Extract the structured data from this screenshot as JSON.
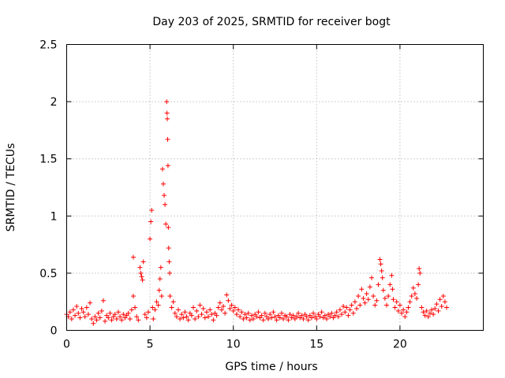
{
  "chart_data": {
    "type": "scatter",
    "title": "Day 203 of 2025, SRMTID for receiver bogt",
    "xlabel": "GPS time / hours",
    "ylabel": "SRMTID / TECUs",
    "xlim": [
      0,
      25
    ],
    "ylim": [
      0,
      2.5
    ],
    "xticks": [
      0,
      5,
      10,
      15,
      20
    ],
    "xtick_labels": [
      "0",
      "5",
      "10",
      "15",
      "20"
    ],
    "yticks": [
      0,
      0.5,
      1,
      1.5,
      2,
      2.5
    ],
    "ytick_labels": [
      "0",
      "0.5",
      "1",
      "1.5",
      "2",
      "2.5"
    ],
    "grid": true,
    "marker": "+",
    "color": "#ff0000",
    "series": [
      {
        "name": "SRMTID",
        "points": [
          [
            0.0,
            0.14
          ],
          [
            0.1,
            0.12
          ],
          [
            0.2,
            0.16
          ],
          [
            0.3,
            0.1
          ],
          [
            0.4,
            0.18
          ],
          [
            0.5,
            0.13
          ],
          [
            0.6,
            0.21
          ],
          [
            0.7,
            0.15
          ],
          [
            0.8,
            0.11
          ],
          [
            0.9,
            0.19
          ],
          [
            1.0,
            0.16
          ],
          [
            1.1,
            0.12
          ],
          [
            1.2,
            0.2
          ],
          [
            1.3,
            0.14
          ],
          [
            1.4,
            0.24
          ],
          [
            1.5,
            0.1
          ],
          [
            1.6,
            0.06
          ],
          [
            1.7,
            0.12
          ],
          [
            1.8,
            0.09
          ],
          [
            1.9,
            0.15
          ],
          [
            2.0,
            0.11
          ],
          [
            2.1,
            0.17
          ],
          [
            2.2,
            0.26
          ],
          [
            2.3,
            0.08
          ],
          [
            2.4,
            0.13
          ],
          [
            2.5,
            0.11
          ],
          [
            2.6,
            0.15
          ],
          [
            2.7,
            0.09
          ],
          [
            2.8,
            0.12
          ],
          [
            2.9,
            0.14
          ],
          [
            3.0,
            0.1
          ],
          [
            3.1,
            0.16
          ],
          [
            3.2,
            0.12
          ],
          [
            3.3,
            0.09
          ],
          [
            3.4,
            0.14
          ],
          [
            3.5,
            0.11
          ],
          [
            3.6,
            0.13
          ],
          [
            3.7,
            0.15
          ],
          [
            3.8,
            0.1
          ],
          [
            3.9,
            0.18
          ],
          [
            4.0,
            0.64
          ],
          [
            4.0,
            0.3
          ],
          [
            4.1,
            0.2
          ],
          [
            4.2,
            0.12
          ],
          [
            4.3,
            0.09
          ],
          [
            4.4,
            0.55
          ],
          [
            4.45,
            0.5
          ],
          [
            4.5,
            0.47
          ],
          [
            4.55,
            0.44
          ],
          [
            4.6,
            0.6
          ],
          [
            4.7,
            0.14
          ],
          [
            4.8,
            0.11
          ],
          [
            4.9,
            0.16
          ],
          [
            5.0,
            0.8
          ],
          [
            5.05,
            0.95
          ],
          [
            5.1,
            1.05
          ],
          [
            5.15,
            0.2
          ],
          [
            5.2,
            0.1
          ],
          [
            5.3,
            0.18
          ],
          [
            5.4,
            0.25
          ],
          [
            5.5,
            0.22
          ],
          [
            5.55,
            0.35
          ],
          [
            5.6,
            0.45
          ],
          [
            5.65,
            0.55
          ],
          [
            5.7,
            0.3
          ],
          [
            5.75,
            1.41
          ],
          [
            5.8,
            1.28
          ],
          [
            5.85,
            1.18
          ],
          [
            5.9,
            1.1
          ],
          [
            5.95,
            0.93
          ],
          [
            6.0,
            2.0
          ],
          [
            6.02,
            1.9
          ],
          [
            6.04,
            1.85
          ],
          [
            6.06,
            1.67
          ],
          [
            6.08,
            1.44
          ],
          [
            6.1,
            0.9
          ],
          [
            6.12,
            0.72
          ],
          [
            6.15,
            0.6
          ],
          [
            6.18,
            0.5
          ],
          [
            6.2,
            0.3
          ],
          [
            6.3,
            0.2
          ],
          [
            6.4,
            0.25
          ],
          [
            6.5,
            0.15
          ],
          [
            6.6,
            0.12
          ],
          [
            6.7,
            0.18
          ],
          [
            6.8,
            0.1
          ],
          [
            6.9,
            0.14
          ],
          [
            7.0,
            0.11
          ],
          [
            7.1,
            0.16
          ],
          [
            7.2,
            0.12
          ],
          [
            7.3,
            0.09
          ],
          [
            7.4,
            0.15
          ],
          [
            7.5,
            0.13
          ],
          [
            7.6,
            0.2
          ],
          [
            7.7,
            0.1
          ],
          [
            7.8,
            0.17
          ],
          [
            7.9,
            0.12
          ],
          [
            8.0,
            0.22
          ],
          [
            8.1,
            0.14
          ],
          [
            8.2,
            0.19
          ],
          [
            8.3,
            0.11
          ],
          [
            8.4,
            0.16
          ],
          [
            8.5,
            0.12
          ],
          [
            8.6,
            0.18
          ],
          [
            8.7,
            0.14
          ],
          [
            8.8,
            0.09
          ],
          [
            8.9,
            0.15
          ],
          [
            9.0,
            0.13
          ],
          [
            9.1,
            0.2
          ],
          [
            9.2,
            0.24
          ],
          [
            9.3,
            0.18
          ],
          [
            9.4,
            0.21
          ],
          [
            9.5,
            0.15
          ],
          [
            9.6,
            0.31
          ],
          [
            9.7,
            0.26
          ],
          [
            9.8,
            0.19
          ],
          [
            9.9,
            0.22
          ],
          [
            10.0,
            0.17
          ],
          [
            10.1,
            0.2
          ],
          [
            10.2,
            0.14
          ],
          [
            10.3,
            0.18
          ],
          [
            10.4,
            0.12
          ],
          [
            10.5,
            0.16
          ],
          [
            10.6,
            0.1
          ],
          [
            10.7,
            0.14
          ],
          [
            10.8,
            0.11
          ],
          [
            10.9,
            0.15
          ],
          [
            11.0,
            0.09
          ],
          [
            11.1,
            0.13
          ],
          [
            11.2,
            0.1
          ],
          [
            11.3,
            0.14
          ],
          [
            11.4,
            0.12
          ],
          [
            11.5,
            0.16
          ],
          [
            11.6,
            0.11
          ],
          [
            11.7,
            0.13
          ],
          [
            11.8,
            0.09
          ],
          [
            11.9,
            0.15
          ],
          [
            12.0,
            0.12
          ],
          [
            12.1,
            0.1
          ],
          [
            12.2,
            0.14
          ],
          [
            12.3,
            0.11
          ],
          [
            12.4,
            0.16
          ],
          [
            12.5,
            0.12
          ],
          [
            12.6,
            0.09
          ],
          [
            12.7,
            0.13
          ],
          [
            12.8,
            0.11
          ],
          [
            12.9,
            0.15
          ],
          [
            13.0,
            0.1
          ],
          [
            13.1,
            0.13
          ],
          [
            13.2,
            0.12
          ],
          [
            13.3,
            0.09
          ],
          [
            13.4,
            0.14
          ],
          [
            13.5,
            0.11
          ],
          [
            13.6,
            0.13
          ],
          [
            13.7,
            0.1
          ],
          [
            13.8,
            0.12
          ],
          [
            13.9,
            0.15
          ],
          [
            14.0,
            0.11
          ],
          [
            14.1,
            0.13
          ],
          [
            14.2,
            0.1
          ],
          [
            14.3,
            0.14
          ],
          [
            14.4,
            0.12
          ],
          [
            14.5,
            0.09
          ],
          [
            14.6,
            0.13
          ],
          [
            14.7,
            0.11
          ],
          [
            14.8,
            0.15
          ],
          [
            14.9,
            0.12
          ],
          [
            15.0,
            0.1
          ],
          [
            15.1,
            0.14
          ],
          [
            15.2,
            0.12
          ],
          [
            15.3,
            0.16
          ],
          [
            15.4,
            0.11
          ],
          [
            15.5,
            0.13
          ],
          [
            15.6,
            0.1
          ],
          [
            15.7,
            0.14
          ],
          [
            15.8,
            0.12
          ],
          [
            15.9,
            0.15
          ],
          [
            16.0,
            0.11
          ],
          [
            16.1,
            0.13
          ],
          [
            16.2,
            0.16
          ],
          [
            16.3,
            0.12
          ],
          [
            16.4,
            0.18
          ],
          [
            16.5,
            0.14
          ],
          [
            16.6,
            0.21
          ],
          [
            16.7,
            0.16
          ],
          [
            16.8,
            0.2
          ],
          [
            16.9,
            0.13
          ],
          [
            17.0,
            0.18
          ],
          [
            17.1,
            0.22
          ],
          [
            17.2,
            0.15
          ],
          [
            17.3,
            0.25
          ],
          [
            17.4,
            0.19
          ],
          [
            17.5,
            0.3
          ],
          [
            17.6,
            0.22
          ],
          [
            17.7,
            0.36
          ],
          [
            17.8,
            0.28
          ],
          [
            17.9,
            0.24
          ],
          [
            18.0,
            0.32
          ],
          [
            18.1,
            0.27
          ],
          [
            18.2,
            0.38
          ],
          [
            18.3,
            0.46
          ],
          [
            18.4,
            0.3
          ],
          [
            18.5,
            0.22
          ],
          [
            18.6,
            0.26
          ],
          [
            18.7,
            0.4
          ],
          [
            18.8,
            0.62
          ],
          [
            18.85,
            0.58
          ],
          [
            18.9,
            0.52
          ],
          [
            18.95,
            0.46
          ],
          [
            19.0,
            0.35
          ],
          [
            19.1,
            0.28
          ],
          [
            19.2,
            0.22
          ],
          [
            19.3,
            0.3
          ],
          [
            19.4,
            0.4
          ],
          [
            19.5,
            0.48
          ],
          [
            19.55,
            0.36
          ],
          [
            19.6,
            0.27
          ],
          [
            19.7,
            0.2
          ],
          [
            19.8,
            0.25
          ],
          [
            19.9,
            0.17
          ],
          [
            20.0,
            0.22
          ],
          [
            20.1,
            0.15
          ],
          [
            20.2,
            0.18
          ],
          [
            20.3,
            0.12
          ],
          [
            20.4,
            0.16
          ],
          [
            20.5,
            0.2
          ],
          [
            20.6,
            0.25
          ],
          [
            20.7,
            0.3
          ],
          [
            20.8,
            0.37
          ],
          [
            20.9,
            0.32
          ],
          [
            21.0,
            0.28
          ],
          [
            21.1,
            0.4
          ],
          [
            21.15,
            0.54
          ],
          [
            21.2,
            0.5
          ],
          [
            21.3,
            0.2
          ],
          [
            21.4,
            0.16
          ],
          [
            21.5,
            0.13
          ],
          [
            21.6,
            0.17
          ],
          [
            21.7,
            0.12
          ],
          [
            21.8,
            0.15
          ],
          [
            21.9,
            0.18
          ],
          [
            22.0,
            0.14
          ],
          [
            22.1,
            0.19
          ],
          [
            22.2,
            0.23
          ],
          [
            22.3,
            0.17
          ],
          [
            22.4,
            0.27
          ],
          [
            22.5,
            0.21
          ],
          [
            22.6,
            0.3
          ],
          [
            22.7,
            0.25
          ],
          [
            22.8,
            0.2
          ]
        ]
      }
    ]
  }
}
